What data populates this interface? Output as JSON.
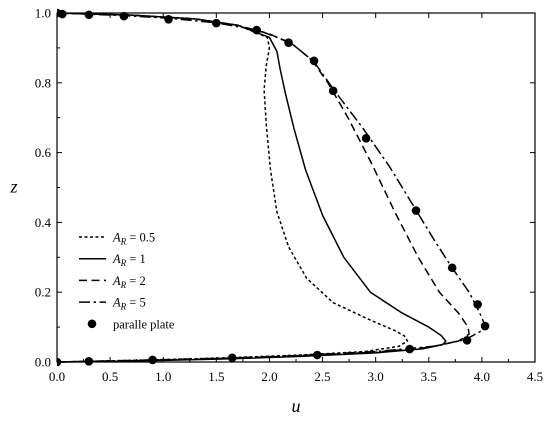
{
  "chart_data": {
    "type": "line",
    "title": "",
    "xlabel": "u",
    "ylabel": "z",
    "xlim": [
      0,
      4.5
    ],
    "ylim": [
      0,
      1.0
    ],
    "x_ticks": [
      "0.0",
      "0.5",
      "1.0",
      "1.5",
      "2.0",
      "2.5",
      "3.0",
      "3.5",
      "4.0",
      "4.5"
    ],
    "y_ticks": [
      "0.0",
      "0.2",
      "0.4",
      "0.6",
      "0.8",
      "1.0"
    ],
    "legend_position": "bottom-left",
    "series": [
      {
        "name": "A_R = 0.5",
        "legend_parts": {
          "base": "A",
          "sub": "R",
          "rest": " = 0.5"
        },
        "style": "dotted",
        "points": [
          [
            0.0,
            0.0
          ],
          [
            0.3,
            0.002
          ],
          [
            0.9,
            0.006
          ],
          [
            1.6,
            0.012
          ],
          [
            2.3,
            0.02
          ],
          [
            2.9,
            0.03
          ],
          [
            3.22,
            0.045
          ],
          [
            3.3,
            0.06
          ],
          [
            3.27,
            0.075
          ],
          [
            3.18,
            0.09
          ],
          [
            2.95,
            0.12
          ],
          [
            2.6,
            0.17
          ],
          [
            2.35,
            0.24
          ],
          [
            2.18,
            0.33
          ],
          [
            2.07,
            0.43
          ],
          [
            2.01,
            0.55
          ],
          [
            1.97,
            0.68
          ],
          [
            1.95,
            0.78
          ],
          [
            1.97,
            0.85
          ],
          [
            2.0,
            0.9
          ],
          [
            1.98,
            0.93
          ],
          [
            1.7,
            0.965
          ],
          [
            1.3,
            0.983
          ],
          [
            0.7,
            0.994
          ],
          [
            0.0,
            1.0
          ]
        ]
      },
      {
        "name": "A_R = 1",
        "legend_parts": {
          "base": "A",
          "sub": "R",
          "rest": " = 1"
        },
        "style": "solid",
        "points": [
          [
            0.0,
            0.0
          ],
          [
            0.3,
            0.001
          ],
          [
            0.9,
            0.004
          ],
          [
            1.6,
            0.009
          ],
          [
            2.3,
            0.016
          ],
          [
            3.0,
            0.026
          ],
          [
            3.45,
            0.038
          ],
          [
            3.63,
            0.05
          ],
          [
            3.66,
            0.06
          ],
          [
            3.62,
            0.075
          ],
          [
            3.5,
            0.1
          ],
          [
            3.25,
            0.14
          ],
          [
            2.95,
            0.2
          ],
          [
            2.7,
            0.3
          ],
          [
            2.5,
            0.42
          ],
          [
            2.34,
            0.55
          ],
          [
            2.23,
            0.67
          ],
          [
            2.15,
            0.77
          ],
          [
            2.1,
            0.84
          ],
          [
            2.07,
            0.89
          ],
          [
            2.0,
            0.93
          ],
          [
            1.7,
            0.965
          ],
          [
            1.3,
            0.983
          ],
          [
            0.7,
            0.994
          ],
          [
            0.0,
            1.0
          ]
        ]
      },
      {
        "name": "A_R = 2",
        "legend_parts": {
          "base": "A",
          "sub": "R",
          "rest": " = 2"
        },
        "style": "dashed",
        "points": [
          [
            0.0,
            0.0
          ],
          [
            0.3,
            0.002
          ],
          [
            0.9,
            0.005
          ],
          [
            1.6,
            0.01
          ],
          [
            2.3,
            0.018
          ],
          [
            3.0,
            0.028
          ],
          [
            3.5,
            0.042
          ],
          [
            3.78,
            0.06
          ],
          [
            3.88,
            0.08
          ],
          [
            3.87,
            0.1
          ],
          [
            3.78,
            0.14
          ],
          [
            3.6,
            0.2
          ],
          [
            3.4,
            0.3
          ],
          [
            3.18,
            0.43
          ],
          [
            2.96,
            0.57
          ],
          [
            2.74,
            0.7
          ],
          [
            2.55,
            0.8
          ],
          [
            2.4,
            0.865
          ],
          [
            2.22,
            0.91
          ],
          [
            2.0,
            0.94
          ],
          [
            1.7,
            0.965
          ],
          [
            1.3,
            0.983
          ],
          [
            0.7,
            0.994
          ],
          [
            0.0,
            1.0
          ]
        ]
      },
      {
        "name": "A_R = 5",
        "legend_parts": {
          "base": "A",
          "sub": "R",
          "rest": " = 5"
        },
        "style": "dashdot",
        "points": [
          [
            0.0,
            0.0
          ],
          [
            0.3,
            0.002
          ],
          [
            0.9,
            0.006
          ],
          [
            1.6,
            0.011
          ],
          [
            2.3,
            0.019
          ],
          [
            3.0,
            0.03
          ],
          [
            3.55,
            0.045
          ],
          [
            3.85,
            0.065
          ],
          [
            4.0,
            0.09
          ],
          [
            4.03,
            0.105
          ],
          [
            3.98,
            0.14
          ],
          [
            3.88,
            0.2
          ],
          [
            3.72,
            0.27
          ],
          [
            3.55,
            0.35
          ],
          [
            3.37,
            0.44
          ],
          [
            3.13,
            0.56
          ],
          [
            2.88,
            0.67
          ],
          [
            2.63,
            0.77
          ],
          [
            2.42,
            0.86
          ],
          [
            2.2,
            0.915
          ],
          [
            1.9,
            0.95
          ],
          [
            1.5,
            0.972
          ],
          [
            1.05,
            0.985
          ],
          [
            0.6,
            0.993
          ],
          [
            0.0,
            1.0
          ]
        ]
      },
      {
        "name": "paralle plate",
        "style": "markers",
        "points": [
          [
            0.0,
            1.0
          ],
          [
            0.05,
            0.997
          ],
          [
            0.3,
            0.995
          ],
          [
            0.63,
            0.991
          ],
          [
            1.05,
            0.982
          ],
          [
            1.5,
            0.971
          ],
          [
            1.88,
            0.951
          ],
          [
            2.18,
            0.915
          ],
          [
            2.42,
            0.863
          ],
          [
            2.6,
            0.777
          ],
          [
            2.91,
            0.641
          ],
          [
            3.38,
            0.434
          ],
          [
            3.72,
            0.27
          ],
          [
            3.96,
            0.165
          ],
          [
            4.03,
            0.103
          ],
          [
            3.86,
            0.062
          ],
          [
            3.32,
            0.037
          ],
          [
            2.45,
            0.02
          ],
          [
            1.65,
            0.012
          ],
          [
            0.9,
            0.006
          ],
          [
            0.3,
            0.002
          ],
          [
            0.0,
            0.0
          ]
        ]
      }
    ]
  }
}
